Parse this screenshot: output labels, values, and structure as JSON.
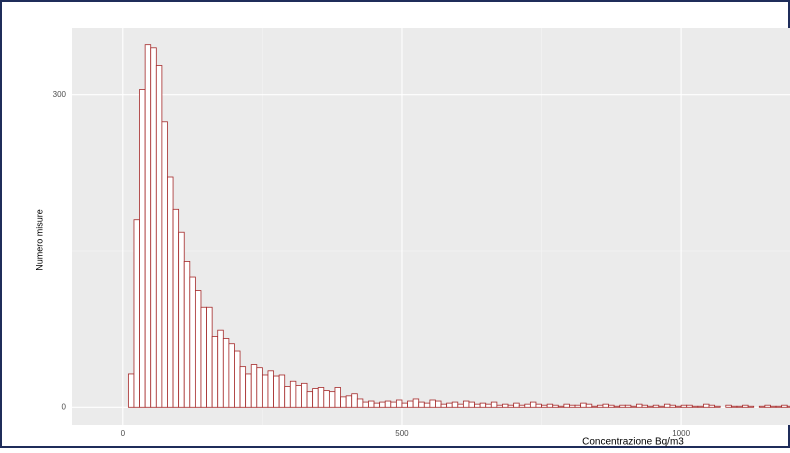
{
  "chart_data": {
    "type": "histogram",
    "x_label": "Concentrazione Bq/m3",
    "y_label": "Numero misure",
    "bins": [
      10,
      20,
      30,
      40,
      50,
      60,
      70,
      80,
      90,
      100,
      110,
      120,
      130,
      140,
      150,
      160,
      170,
      180,
      190,
      200,
      210,
      220,
      230,
      240,
      250,
      260,
      270,
      280,
      290,
      300,
      310,
      320,
      330,
      340,
      350,
      360,
      370,
      380,
      390,
      400,
      410,
      420,
      430,
      440,
      450,
      460,
      470,
      480,
      490,
      500,
      510,
      520,
      530,
      540,
      550,
      560,
      570,
      580,
      590,
      600,
      610,
      620,
      630,
      640,
      650,
      660,
      670,
      680,
      690,
      700,
      710,
      720,
      730,
      740,
      750,
      760,
      770,
      780,
      790,
      800,
      810,
      820,
      830,
      840,
      850,
      860,
      870,
      880,
      890,
      900,
      910,
      920,
      930,
      940,
      950,
      960,
      970,
      980,
      990,
      1000,
      1010,
      1020,
      1030,
      1040,
      1050,
      1060,
      1070,
      1080,
      1090,
      1100,
      1110,
      1120,
      1130,
      1140,
      1150,
      1160,
      1170,
      1180,
      1190,
      1200
    ],
    "counts": [
      32,
      180,
      305,
      348,
      345,
      328,
      274,
      221,
      190,
      168,
      140,
      125,
      112,
      96,
      96,
      68,
      74,
      66,
      61,
      54,
      39,
      32,
      41,
      38,
      31,
      35,
      30,
      31,
      20,
      25,
      21,
      23,
      15,
      18,
      19,
      16,
      15,
      19,
      10,
      11,
      13,
      8,
      5,
      6,
      4,
      5,
      6,
      5,
      7,
      4,
      6,
      8,
      5,
      4,
      7,
      6,
      3,
      4,
      5,
      3,
      6,
      5,
      3,
      4,
      3,
      5,
      2,
      3,
      2,
      4,
      2,
      3,
      5,
      3,
      2,
      3,
      2,
      1,
      3,
      2,
      2,
      4,
      3,
      1,
      2,
      3,
      2,
      1,
      2,
      2,
      1,
      3,
      2,
      1,
      2,
      1,
      3,
      2,
      1,
      2,
      2,
      1,
      1,
      3,
      2,
      1,
      0,
      2,
      1,
      1,
      2,
      1,
      0,
      1,
      2,
      1,
      1,
      2,
      1
    ],
    "color": "#a52a2a",
    "fill": "#ffffff",
    "xlim": [
      -91,
      1195
    ],
    "xticks": [
      0,
      500,
      1000
    ],
    "ylim": [
      -17,
      364
    ],
    "yticks": [
      0,
      300
    ],
    "grid": true
  }
}
